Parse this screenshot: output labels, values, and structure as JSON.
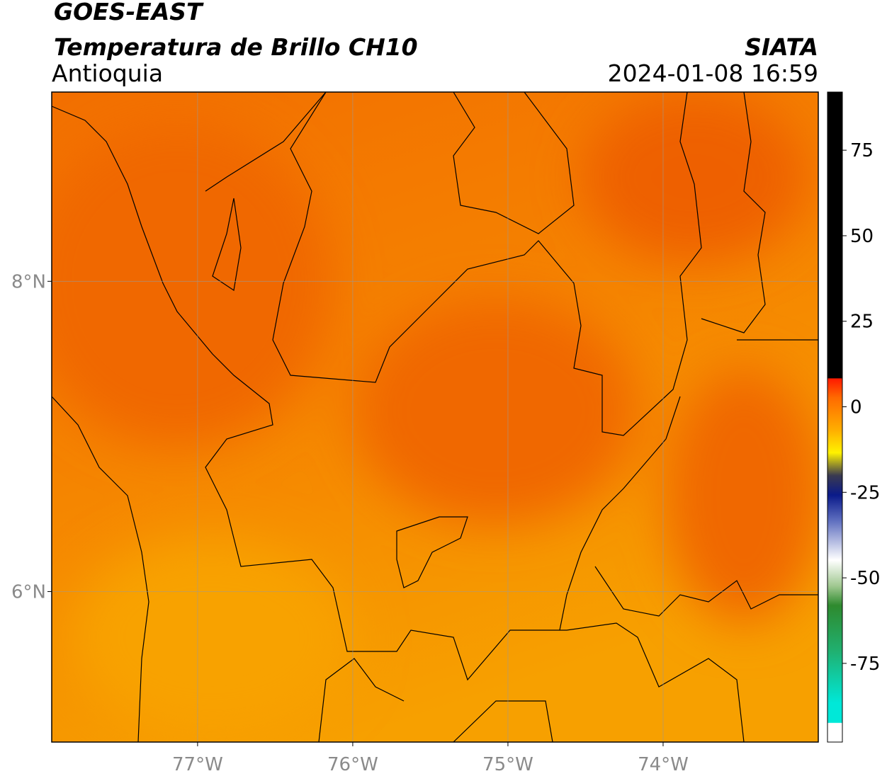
{
  "header": {
    "title": "GOES-EAST",
    "subtitle": "Temperatura de Brillo CH10",
    "region": "Antioquia",
    "agency": "SIATA",
    "timestamp": "2024-01-08 16:59"
  },
  "map": {
    "xlim": [
      -77.94,
      -73.0
    ],
    "ylim": [
      5.03,
      9.22
    ],
    "xticks": [
      {
        "value": -77,
        "label": "77°W"
      },
      {
        "value": -76,
        "label": "76°W"
      },
      {
        "value": -75,
        "label": "75°W"
      },
      {
        "value": -74,
        "label": "74°W"
      }
    ],
    "yticks": [
      {
        "value": 8,
        "label": "8°N"
      },
      {
        "value": 6,
        "label": "6°N"
      }
    ]
  },
  "colorbar": {
    "lim": [
      -98,
      92
    ],
    "ticks": [
      75,
      50,
      25,
      0,
      -25,
      -50,
      -75
    ]
  }
}
